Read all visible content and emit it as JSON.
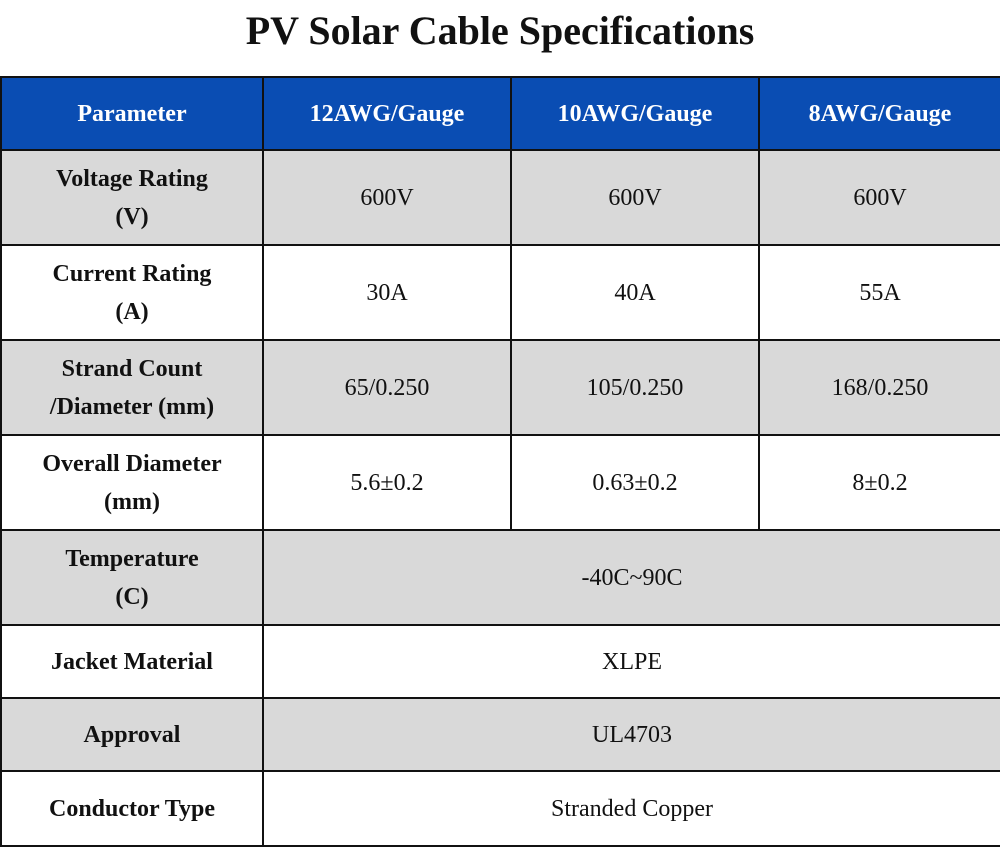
{
  "title": "PV Solar Cable Specifications",
  "table": {
    "headers": [
      "Parameter",
      "12AWG/Gauge",
      "10AWG/Gauge",
      "8AWG/Gauge"
    ],
    "rows": [
      {
        "param_line1": "Voltage Rating",
        "param_line2": "(V)",
        "values": [
          "600V",
          "600V",
          "600V"
        ]
      },
      {
        "param_line1": "Current Rating",
        "param_line2": "(A)",
        "values": [
          "30A",
          "40A",
          "55A"
        ]
      },
      {
        "param_line1": "Strand Count",
        "param_line2": "/Diameter (mm)",
        "values": [
          "65/0.250",
          "105/0.250",
          "168/0.250"
        ]
      },
      {
        "param_line1": "Overall Diameter",
        "param_line2": "(mm)",
        "values": [
          "5.6±0.2",
          "0.63±0.2",
          "8±0.2"
        ]
      },
      {
        "param_line1": "Temperature",
        "param_line2": "(C)",
        "merged_value": "-40C~90C"
      },
      {
        "param": "Jacket Material",
        "merged_value": "XLPE"
      },
      {
        "param": "Approval",
        "merged_value": "UL4703"
      },
      {
        "param": "Conductor Type",
        "merged_value": "Stranded Copper"
      }
    ]
  },
  "colors": {
    "header_bg": "#0a4db3",
    "header_text": "#ffffff",
    "row_alt_bg": "#d9d9d9",
    "row_bg": "#ffffff",
    "border": "#111111"
  }
}
